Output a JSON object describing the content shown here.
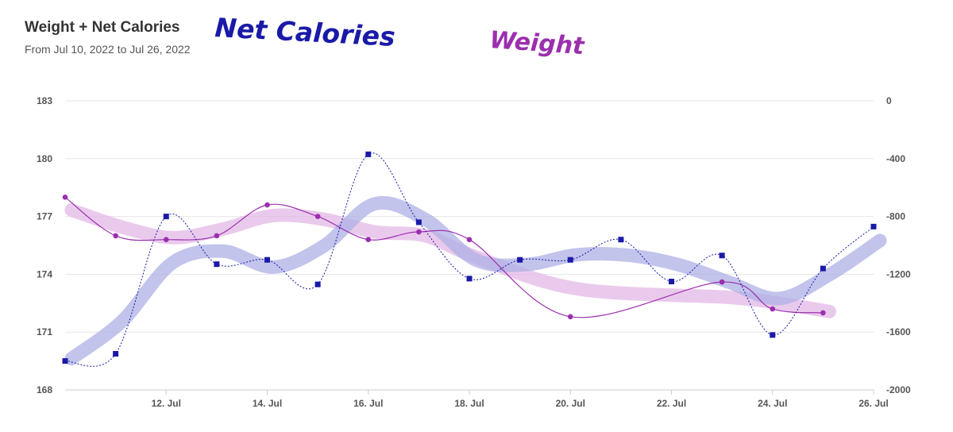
{
  "header": {
    "title": "Weight + Net Calories",
    "subtitle": "From Jul 10, 2022 to Jul 26, 2022"
  },
  "annotations": {
    "net_calories": "Net Calories",
    "weight": "Weight"
  },
  "colors": {
    "net_calories": "#1a1aa8",
    "net_calories_trend": "#aeb0e6",
    "weight": "#9b2fae",
    "weight_trend": "#e3b8e6",
    "grid": "#e6e6e6"
  },
  "chart_data": {
    "type": "line",
    "title": "Weight + Net Calories",
    "subtitle": "From Jul 10, 2022 to Jul 26, 2022",
    "x_range": [
      "Jul 10",
      "Jul 26"
    ],
    "x_ticks": [
      "12. Jul",
      "14. Jul",
      "16. Jul",
      "18. Jul",
      "20. Jul",
      "22. Jul",
      "24. Jul",
      "26. Jul"
    ],
    "y_left": {
      "range": [
        168,
        183
      ],
      "ticks": [
        "168",
        "171",
        "174",
        "177",
        "180",
        "183"
      ]
    },
    "y_right": {
      "range": [
        -2000,
        0
      ],
      "ticks": [
        "-2000",
        "-1600",
        "-1200",
        "-800",
        "-400",
        "0"
      ]
    },
    "grid": true,
    "series": [
      {
        "name": "Weight",
        "axis": "left",
        "marker": "circle",
        "x": [
          "Jul 10",
          "Jul 11",
          "Jul 12",
          "Jul 13",
          "Jul 14",
          "Jul 15",
          "Jul 16",
          "Jul 17",
          "Jul 18",
          "Jul 20",
          "Jul 23",
          "Jul 24",
          "Jul 25"
        ],
        "values": [
          178.0,
          176.0,
          175.8,
          176.0,
          177.6,
          177.0,
          175.8,
          176.2,
          175.8,
          171.8,
          173.6,
          172.2,
          172.0
        ]
      },
      {
        "name": "Net Calories",
        "axis": "right",
        "marker": "square",
        "x": [
          "Jul 10",
          "Jul 11",
          "Jul 12",
          "Jul 13",
          "Jul 14",
          "Jul 15",
          "Jul 16",
          "Jul 17",
          "Jul 18",
          "Jul 19",
          "Jul 20",
          "Jul 21",
          "Jul 22",
          "Jul 23",
          "Jul 24",
          "Jul 25",
          "Jul 26"
        ],
        "values": [
          -1800,
          -1750,
          -800,
          -1130,
          -1100,
          -1270,
          -370,
          -840,
          -1230,
          -1100,
          -1100,
          -960,
          -1250,
          -1070,
          -1620,
          -1160,
          -870
        ]
      }
    ]
  }
}
